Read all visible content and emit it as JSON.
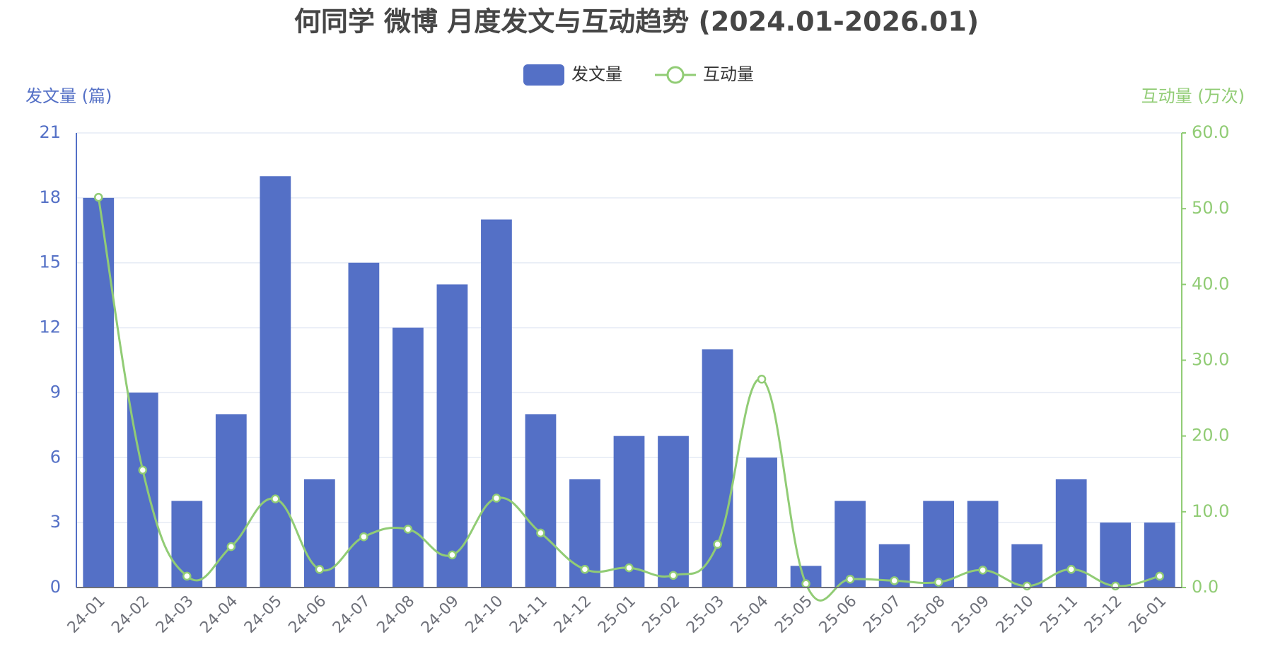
{
  "chart_data": {
    "type": "bar-line",
    "title": "何同学 微博 月度发文与互动趋势 (2024.01-2026.01)",
    "y_label": "发文量 (篇)",
    "y2_label": "互动量 (万次)",
    "categories": [
      "24-01",
      "24-02",
      "24-03",
      "24-04",
      "24-05",
      "24-06",
      "24-07",
      "24-08",
      "24-09",
      "24-10",
      "24-11",
      "24-12",
      "25-01",
      "25-02",
      "25-03",
      "25-04",
      "25-05",
      "25-06",
      "25-07",
      "25-08",
      "25-09",
      "25-10",
      "25-11",
      "25-12",
      "26-01"
    ],
    "series": [
      {
        "name": "发文量",
        "type": "bar",
        "color": "#5470c6",
        "values": [
          18,
          9,
          4,
          8,
          19,
          5,
          15,
          12,
          14,
          17,
          8,
          5,
          7,
          7,
          11,
          6,
          1,
          4,
          2,
          4,
          4,
          2,
          5,
          3,
          3
        ]
      },
      {
        "name": "互动量",
        "type": "line",
        "axis": "y2",
        "color": "#91cc75",
        "smooth": true,
        "values": [
          51.5,
          15.5,
          1.5,
          5.4,
          11.7,
          2.4,
          6.7,
          7.7,
          4.3,
          11.8,
          7.2,
          2.4,
          2.6,
          1.6,
          5.7,
          27.5,
          0.5,
          1.1,
          0.9,
          0.7,
          2.3,
          0.2,
          2.4,
          0.2,
          1.5
        ]
      }
    ],
    "ylim": [
      0,
      21
    ],
    "yticks": [
      0,
      3,
      6,
      9,
      12,
      15,
      18,
      21
    ],
    "y2lim": [
      0,
      60
    ],
    "y2ticks": [
      {
        "value": 0,
        "label": "0.0"
      },
      {
        "value": 10,
        "label": "10.0"
      },
      {
        "value": 20,
        "label": "20.0"
      },
      {
        "value": 30,
        "label": "30.0"
      },
      {
        "value": 40,
        "label": "40.0"
      },
      {
        "value": 50,
        "label": "50.0"
      },
      {
        "value": 60,
        "label": "60.0"
      }
    ],
    "grid": true,
    "legend": "top"
  }
}
